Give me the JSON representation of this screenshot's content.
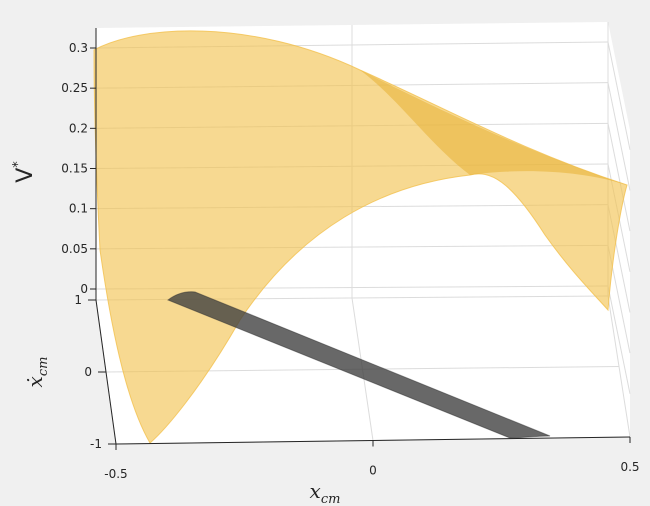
{
  "chart_data": {
    "type": "surface3d",
    "title": "",
    "zlabel": {
      "main": "V",
      "sup": "*"
    },
    "xlabel": {
      "main": "x",
      "sub": "cm"
    },
    "ylabel": {
      "main": "ẋ",
      "sub": "cm"
    },
    "x_ticks": [
      "-0.5",
      "0",
      "0.5"
    ],
    "y_ticks": [
      "-1",
      "0",
      "1"
    ],
    "z_ticks": [
      "0",
      "0.05",
      "0.1",
      "0.15",
      "0.2",
      "0.25",
      "0.3"
    ],
    "xlim": [
      -0.5,
      0.5
    ],
    "ylim": [
      -1,
      1
    ],
    "zlim": [
      0,
      0.3
    ],
    "grid": true,
    "series": [
      {
        "kind": "surface",
        "color": "#f2c14e",
        "opacity": 0.6,
        "corner_values": [
          {
            "x": -0.5,
            "xdot": 1,
            "v": 0.29
          },
          {
            "x": 0.5,
            "xdot": 1,
            "v": 0.13
          },
          {
            "x": 0.5,
            "xdot": -1,
            "v": 0.0
          },
          {
            "x": -0.5,
            "xdot": -1,
            "v": 0.0
          }
        ]
      },
      {
        "kind": "band",
        "color": "#4a4a4a",
        "opacity": 0.8,
        "description_free": true,
        "start": {
          "x": -0.4,
          "xdot": 1
        },
        "end": {
          "x": 0.35,
          "xdot": -1
        }
      }
    ]
  }
}
